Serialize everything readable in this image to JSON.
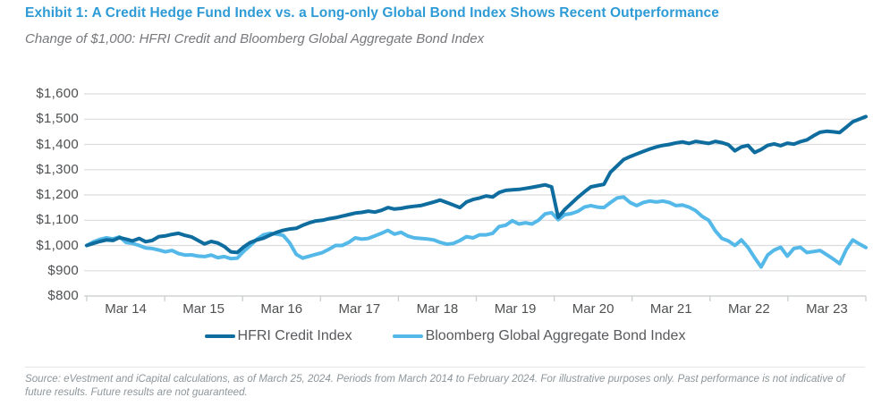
{
  "header": {
    "title": "Exhibit 1: A Credit Hedge Fund Index vs. a Long-only Global Bond Index Shows Recent Outperformance",
    "subtitle": "Change of $1,000: HFRI Credit and Bloomberg Global Aggregate Bond Index"
  },
  "footer": {
    "source_note": "Source: eVestment and iCapital calculations, as of March 25, 2024. Periods from March 2014 to February 2024. For illustrative purposes only. Past performance is not indicative of future results. Future results are not guaranteed."
  },
  "colors": {
    "title_blue": "#2E9BD6",
    "hfri_line": "#0E6D9E",
    "bond_line": "#54B8E8",
    "gridline": "#DBDCDD",
    "axis_text": "#4E5052",
    "legend_text": "#57595C"
  },
  "chart_data": {
    "type": "line",
    "title": "Change of $1,000: HFRI Credit and Bloomberg Global Aggregate Bond Index",
    "x_frequency": "monthly",
    "x_range": [
      "Mar 2014",
      "Feb 2024"
    ],
    "x_tick_labels": [
      "Mar 14",
      "Mar 15",
      "Mar 16",
      "Mar 17",
      "Mar 18",
      "Mar 19",
      "Mar 20",
      "Mar 21",
      "Mar 22",
      "Mar 23"
    ],
    "ylim": [
      800,
      1600
    ],
    "y_ticks": {
      "values": [
        800,
        900,
        1000,
        1100,
        1200,
        1300,
        1400,
        1500,
        1600
      ],
      "labels": [
        "$800",
        "$900",
        "$1,000",
        "$1,100",
        "$1,200",
        "$1,300",
        "$1,400",
        "$1,500",
        "$1,600"
      ]
    },
    "grid": "horizontal",
    "legend_position": "bottom",
    "series": [
      {
        "name": "HFRI Credit Index",
        "color": "#0E6D9E",
        "values": [
          1000,
          1008,
          1016,
          1022,
          1020,
          1031,
          1025,
          1018,
          1028,
          1015,
          1020,
          1035,
          1038,
          1044,
          1048,
          1040,
          1034,
          1020,
          1006,
          1016,
          1010,
          996,
          975,
          972,
          995,
          1012,
          1022,
          1029,
          1041,
          1052,
          1060,
          1065,
          1068,
          1080,
          1090,
          1097,
          1100,
          1106,
          1110,
          1116,
          1122,
          1128,
          1131,
          1136,
          1132,
          1139,
          1150,
          1144,
          1147,
          1152,
          1155,
          1158,
          1165,
          1172,
          1180,
          1170,
          1160,
          1150,
          1172,
          1182,
          1188,
          1196,
          1192,
          1210,
          1218,
          1220,
          1222,
          1226,
          1230,
          1235,
          1240,
          1232,
          1112,
          1142,
          1166,
          1190,
          1212,
          1232,
          1237,
          1242,
          1290,
          1315,
          1340,
          1352,
          1362,
          1372,
          1382,
          1390,
          1396,
          1400,
          1406,
          1410,
          1404,
          1412,
          1408,
          1404,
          1412,
          1407,
          1399,
          1375,
          1390,
          1396,
          1368,
          1380,
          1396,
          1402,
          1395,
          1405,
          1401,
          1411,
          1418,
          1434,
          1448,
          1452,
          1450,
          1447,
          1468,
          1490,
          1500,
          1510
        ]
      },
      {
        "name": "Bloomberg Global Aggregate Bond Index",
        "color": "#54B8E8",
        "values": [
          1000,
          1014,
          1024,
          1030,
          1026,
          1034,
          1012,
          1008,
          1000,
          990,
          988,
          982,
          975,
          980,
          968,
          962,
          963,
          958,
          956,
          962,
          952,
          956,
          948,
          950,
          978,
          1000,
          1025,
          1042,
          1048,
          1045,
          1040,
          1010,
          965,
          950,
          958,
          965,
          972,
          985,
          1000,
          1000,
          1012,
          1030,
          1025,
          1028,
          1038,
          1048,
          1060,
          1045,
          1052,
          1038,
          1030,
          1028,
          1026,
          1022,
          1012,
          1005,
          1008,
          1020,
          1035,
          1030,
          1042,
          1042,
          1048,
          1075,
          1080,
          1098,
          1085,
          1090,
          1085,
          1100,
          1125,
          1130,
          1102,
          1122,
          1126,
          1135,
          1152,
          1158,
          1152,
          1150,
          1170,
          1188,
          1192,
          1170,
          1158,
          1170,
          1176,
          1172,
          1176,
          1170,
          1158,
          1160,
          1152,
          1138,
          1115,
          1100,
          1058,
          1028,
          1018,
          1000,
          1022,
          992,
          952,
          915,
          962,
          982,
          993,
          958,
          988,
          993,
          972,
          976,
          980,
          964,
          947,
          928,
          983,
          1022,
          1006,
          992
        ]
      }
    ]
  }
}
